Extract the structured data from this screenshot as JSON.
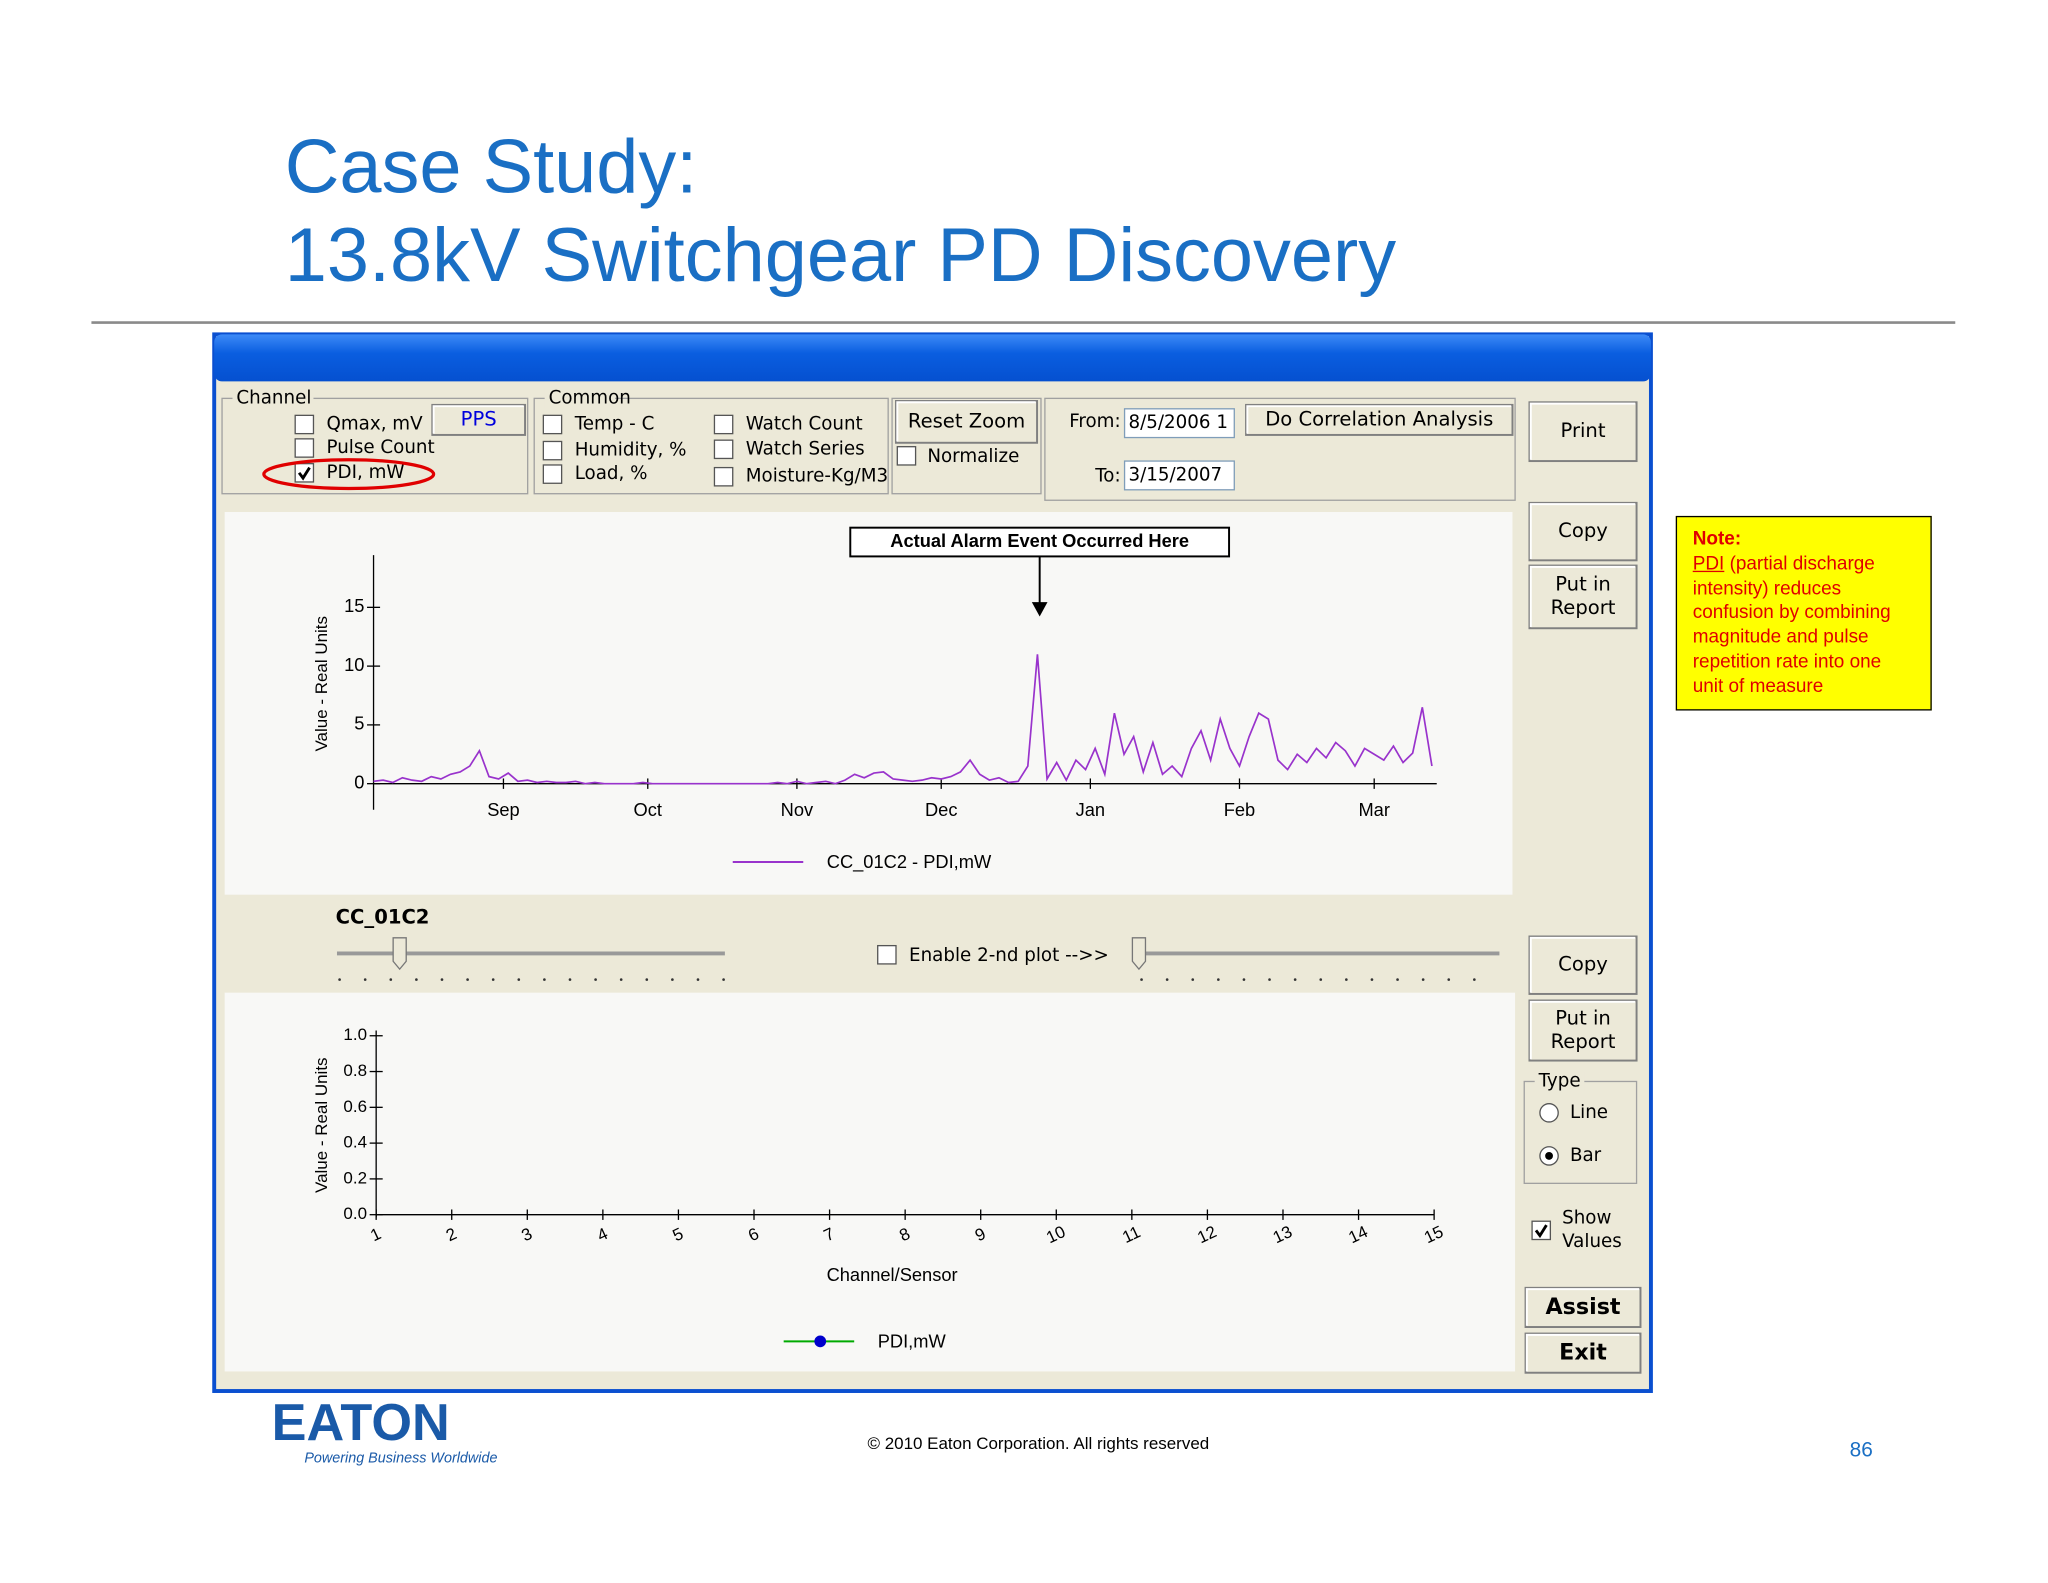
{
  "slide": {
    "title": [
      "Case Study:",
      "13.8kV Switchgear PD Discovery"
    ],
    "copyright": "© 2010 Eaton Corporation. All rights reserved",
    "page_number": "86",
    "logo": "EATON",
    "tagline": "Powering Business Worldwide"
  },
  "note": {
    "heading": "Note:",
    "term": "PDI",
    "text": " (partial discharge intensity) reduces confusion by combining magnitude and pulse repetition rate into one unit of measure"
  },
  "window": {
    "channel": {
      "title": "Channel",
      "options": [
        {
          "label": "Qmax, mV",
          "checked": false
        },
        {
          "label": "Pulse Count",
          "checked": false
        },
        {
          "label": "PDI, mW",
          "checked": true
        }
      ],
      "pps": "PPS"
    },
    "common": {
      "title": "Common",
      "options": [
        {
          "label": "Temp - C",
          "checked": false
        },
        {
          "label": "Humidity, %",
          "checked": false
        },
        {
          "label": "Load, %",
          "checked": false
        },
        {
          "label": "Watch Count",
          "checked": false
        },
        {
          "label": "Watch Series",
          "checked": false
        },
        {
          "label": "Moisture-Kg/M3",
          "checked": false
        }
      ]
    },
    "reset_zoom": "Reset Zoom",
    "normalize": {
      "label": "Normalize",
      "checked": false
    },
    "from_label": "From:",
    "from": "8/5/2006 1",
    "to_label": "To:",
    "to": "3/15/2007",
    "correlation": "Do Correlation Analysis",
    "buttons": {
      "print": "Print",
      "copy1": "Copy",
      "report1": [
        "Put in",
        "Report"
      ],
      "copy2": "Copy",
      "report2": [
        "Put in",
        "Report"
      ],
      "assist": "Assist",
      "exit": "Exit"
    },
    "type": {
      "title": "Type",
      "options": [
        {
          "label": "Line",
          "selected": false
        },
        {
          "label": "Bar",
          "selected": true
        }
      ]
    },
    "show_values": {
      "label": [
        "Show",
        "Values"
      ],
      "checked": true
    },
    "slider_label": "CC_01C2",
    "enable_2nd": {
      "label": "Enable  2-nd plot -->>",
      "checked": false
    }
  },
  "chart_data": [
    {
      "type": "line",
      "annotation": "Actual Alarm Event Occurred Here",
      "y_label": "Value - Real Units",
      "x": [
        0,
        2,
        4,
        6,
        8,
        10,
        12,
        14,
        16,
        18,
        20,
        22,
        24,
        26,
        28,
        30,
        32,
        34,
        36,
        38,
        40,
        42,
        44,
        46,
        48,
        50,
        52,
        54,
        56,
        58,
        60,
        62,
        64,
        66,
        68,
        70,
        72,
        74,
        76,
        78,
        80,
        82,
        84,
        86,
        88,
        90,
        92,
        94,
        96,
        98,
        100,
        102,
        104,
        106,
        108,
        110,
        112,
        114,
        116,
        118,
        120,
        122,
        124,
        126,
        128,
        130,
        132,
        134,
        136,
        138,
        140,
        142,
        144,
        146,
        148,
        150,
        152,
        154,
        156,
        158,
        160,
        162,
        164,
        166,
        168,
        170,
        172,
        174,
        176,
        178,
        180,
        182,
        184,
        186,
        188,
        190,
        192,
        194,
        196,
        198,
        200,
        202,
        204,
        206,
        208,
        210,
        212,
        214,
        216,
        218,
        220
      ],
      "series": [
        {
          "name": "CC_01C2 - PDI,mW",
          "color": "#9933cc",
          "values": [
            0.2,
            0.3,
            0.1,
            0.5,
            0.3,
            0.2,
            0.6,
            0.4,
            0.8,
            1.0,
            1.5,
            2.8,
            0.6,
            0.4,
            0.9,
            0.2,
            0.3,
            0.1,
            0.2,
            0.1,
            0.1,
            0.2,
            0,
            0.1,
            0,
            0,
            0,
            0,
            0.1,
            0,
            0,
            0,
            0,
            0,
            0,
            0,
            0,
            0,
            0,
            0,
            0,
            0,
            0.1,
            0,
            0.2,
            0,
            0.1,
            0.2,
            0,
            0.3,
            0.8,
            0.5,
            0.9,
            1.0,
            0.4,
            0.3,
            0.2,
            0.3,
            0.5,
            0.4,
            0.6,
            1.0,
            2.0,
            0.8,
            0.3,
            0.5,
            0.1,
            0.2,
            1.5,
            11.0,
            0.4,
            1.8,
            0.3,
            2.0,
            1.2,
            3.0,
            0.8,
            6.0,
            2.5,
            4.0,
            1.0,
            3.5,
            0.8,
            1.5,
            0.6,
            3.0,
            4.5,
            2.0,
            5.5,
            3.0,
            1.5,
            4.0,
            6.0,
            5.5,
            2.0,
            1.2,
            2.5,
            1.8,
            3.0,
            2.2,
            3.5,
            2.8,
            1.5,
            3.0,
            2.5,
            2.0,
            3.2,
            1.8,
            2.6,
            6.5,
            1.5
          ]
        }
      ],
      "xlim": [
        0,
        221
      ],
      "xticks": [
        {
          "value": 27,
          "label": "Sep"
        },
        {
          "value": 57,
          "label": "Oct"
        },
        {
          "value": 88,
          "label": "Nov"
        },
        {
          "value": 118,
          "label": "Dec"
        },
        {
          "value": 149,
          "label": "Jan"
        },
        {
          "value": 180,
          "label": "Feb"
        },
        {
          "value": 208,
          "label": "Mar"
        }
      ],
      "ylim": [
        -2,
        19
      ],
      "yticks": [
        0,
        5,
        10,
        15
      ]
    },
    {
      "type": "line",
      "y_label": "Value - Real Units",
      "x_label": "Channel/Sensor",
      "series": [
        {
          "name": "PDI,mW",
          "color": "#0000cc",
          "line_color": "#00aa00"
        }
      ],
      "xlim": [
        1,
        15
      ],
      "xticks": [
        1,
        2,
        3,
        4,
        5,
        6,
        7,
        8,
        9,
        10,
        11,
        12,
        13,
        14,
        15
      ],
      "ylim": [
        0,
        1
      ],
      "yticks": [
        {
          "value": 0,
          "label": "0.0"
        },
        0.2,
        0.4,
        0.6,
        0.8,
        {
          "value": 1,
          "label": "1.0"
        }
      ]
    }
  ]
}
